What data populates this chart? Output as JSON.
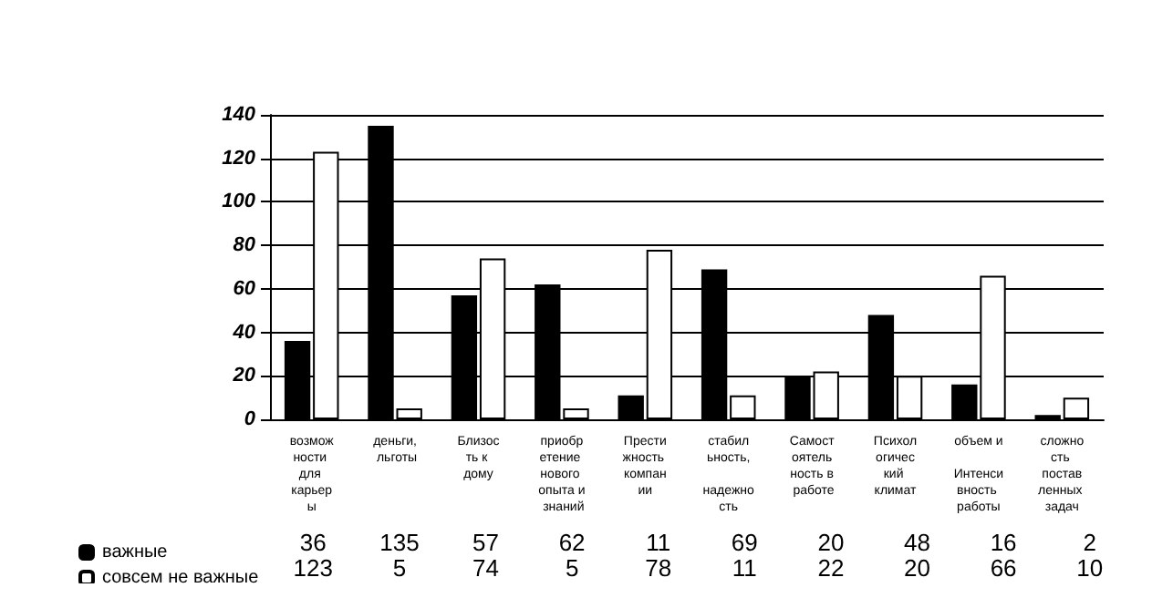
{
  "chart_data": {
    "type": "bar",
    "categories": [
      "возможности для карьеры",
      "деньги, льготы",
      "Близость к дому",
      "приобретение нового опыта и знаний",
      "Престижность компании",
      "стабильность, надежность",
      "Самостоятельность в работе",
      "Психологический климат",
      "объем и Интенсивность работы",
      "сложность поставленных задач"
    ],
    "series": [
      {
        "name": "важные",
        "color": "#000000",
        "values": [
          36,
          135,
          57,
          62,
          11,
          69,
          20,
          48,
          16,
          2
        ]
      },
      {
        "name": "совсем не важные",
        "color": "#ffffff",
        "values": [
          123,
          5,
          74,
          5,
          78,
          11,
          22,
          20,
          66,
          10
        ]
      }
    ],
    "ylim": [
      0,
      140
    ],
    "yticks": [
      0,
      20,
      40,
      60,
      80,
      100,
      120,
      140
    ],
    "grid": "y",
    "legend": "bottom left",
    "data_labels": true
  }
}
